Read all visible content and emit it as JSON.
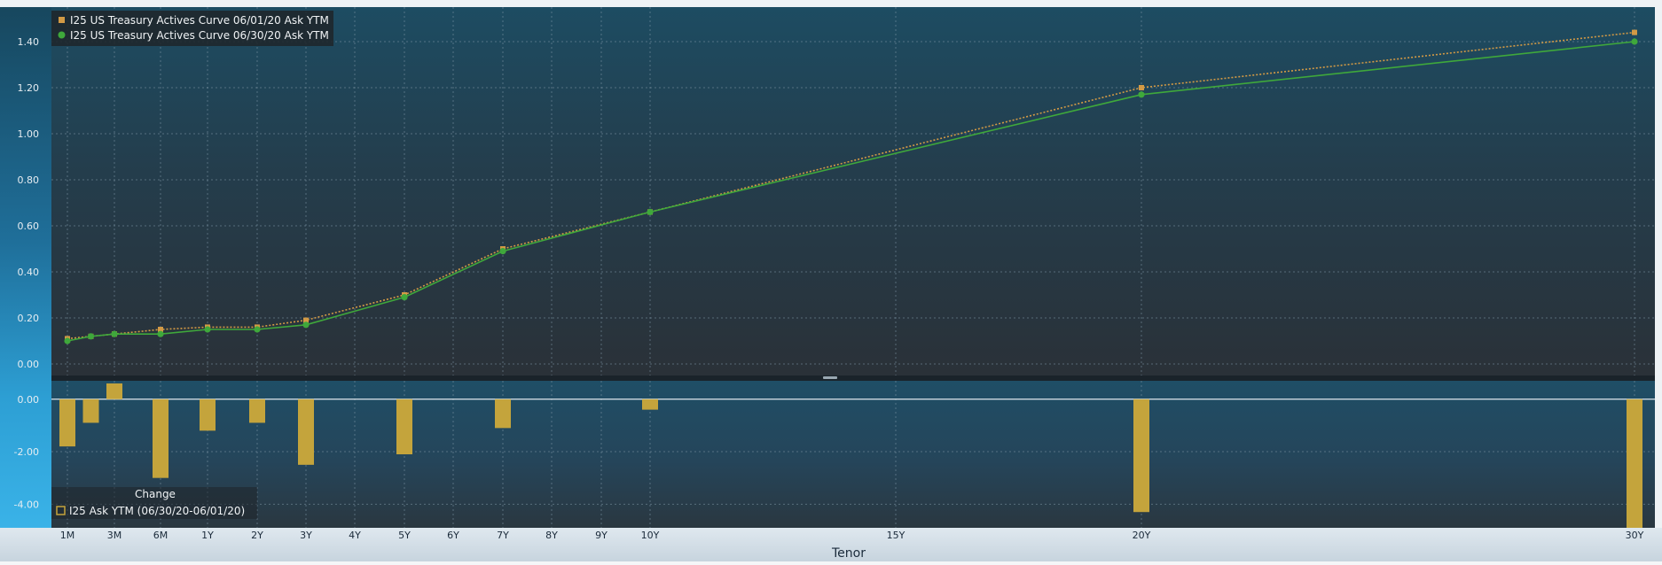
{
  "chart_data": [
    {
      "type": "line",
      "x": [
        "1M",
        "2M",
        "3M",
        "6M",
        "1Y",
        "2Y",
        "3Y",
        "5Y",
        "7Y",
        "10Y",
        "20Y",
        "30Y"
      ],
      "series": [
        {
          "name": "I25 US Treasury Actives Curve 06/01/20 Ask YTM",
          "color": "#d39a45",
          "style": "dotted",
          "values": [
            0.11,
            0.12,
            0.13,
            0.15,
            0.16,
            0.16,
            0.19,
            0.3,
            0.5,
            0.66,
            1.2,
            1.44
          ]
        },
        {
          "name": "I25 US Treasury Actives Curve 06/30/20 Ask YTM",
          "color": "#3fa83b",
          "style": "solid",
          "values": [
            0.1,
            0.12,
            0.13,
            0.13,
            0.15,
            0.15,
            0.17,
            0.29,
            0.49,
            0.66,
            1.17,
            1.4
          ]
        }
      ],
      "ylim": [
        -0.05,
        1.55
      ],
      "yticks": [
        "0.00",
        "0.20",
        "0.40",
        "0.60",
        "0.80",
        "1.00",
        "1.20",
        "1.40"
      ],
      "grid": true,
      "legend": "top-left"
    },
    {
      "type": "bar",
      "x": [
        "1M",
        "2M",
        "3M",
        "6M",
        "1Y",
        "2Y",
        "3Y",
        "5Y",
        "7Y",
        "10Y",
        "20Y",
        "30Y"
      ],
      "series": [
        {
          "name": "I25 Ask YTM (06/30/20-06/01/20)",
          "color": "#c4a43c",
          "values": [
            -1.8,
            -0.9,
            0.6,
            -3.0,
            -1.2,
            -0.9,
            -2.5,
            -2.1,
            -1.1,
            -0.4,
            -4.3,
            -4.9
          ]
        }
      ],
      "legend_title": "Change",
      "ylim": [
        -4.9,
        0.7
      ],
      "yticks": [
        "0.00",
        "-2.00",
        "-4.00"
      ],
      "grid": true,
      "legend": "bottom-left"
    }
  ],
  "x_axis": {
    "label": "Tenor",
    "tick_labels": [
      "1M",
      "3M",
      "6M",
      "1Y",
      "2Y",
      "3Y",
      "4Y",
      "5Y",
      "6Y",
      "7Y",
      "8Y",
      "9Y",
      "10Y",
      "15Y",
      "20Y",
      "30Y"
    ],
    "tick_tenors": [
      1,
      3,
      6,
      12,
      24,
      36,
      48,
      60,
      72,
      84,
      96,
      108,
      120,
      180,
      240,
      360
    ]
  }
}
